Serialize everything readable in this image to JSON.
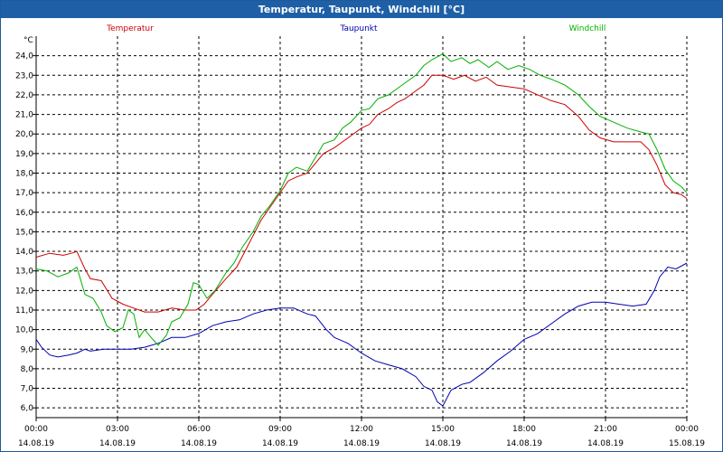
{
  "window": {
    "title": "Temperatur, Taupunkt, Windchill [°C]"
  },
  "colors": {
    "temperature": "#cc0000",
    "dewpoint": "#0000b0",
    "windchill": "#00b000",
    "grid": "#000000",
    "titlebar": "#1f5fa6"
  },
  "chart_data": {
    "type": "line",
    "title": "Temperatur, Taupunkt, Windchill [°C]",
    "yunit": "°C",
    "ylim": [
      5.5,
      25.0
    ],
    "yticks": [
      "6,0",
      "7,0",
      "8,0",
      "9,0",
      "10,0",
      "11,0",
      "12,0",
      "13,0",
      "14,0",
      "15,0",
      "16,0",
      "17,0",
      "18,0",
      "19,0",
      "20,0",
      "21,0",
      "22,0",
      "23,0",
      "24,0"
    ],
    "xlim": [
      0,
      24
    ],
    "x_ticks": [
      {
        "time": "00:00",
        "date": "14.08.19"
      },
      {
        "time": "03:00",
        "date": "14.08.19"
      },
      {
        "time": "06:00",
        "date": "14.08.19"
      },
      {
        "time": "09:00",
        "date": "14.08.19"
      },
      {
        "time": "12:00",
        "date": "14.08.19"
      },
      {
        "time": "15:00",
        "date": "14.08.19"
      },
      {
        "time": "18:00",
        "date": "14.08.19"
      },
      {
        "time": "21:00",
        "date": "14.08.19"
      },
      {
        "time": "00:00",
        "date": "15.08.19"
      }
    ],
    "grid": true,
    "legend_position": "top",
    "series": [
      {
        "name": "Temperatur",
        "color": "#cc0000",
        "points": [
          [
            0,
            13.7
          ],
          [
            0.5,
            13.9
          ],
          [
            1,
            13.8
          ],
          [
            1.3,
            13.9
          ],
          [
            1.5,
            14.0
          ],
          [
            1.8,
            13.1
          ],
          [
            2,
            12.6
          ],
          [
            2.4,
            12.5
          ],
          [
            2.8,
            11.6
          ],
          [
            3.2,
            11.3
          ],
          [
            3.6,
            11.1
          ],
          [
            4,
            10.9
          ],
          [
            4.5,
            10.9
          ],
          [
            5,
            11.1
          ],
          [
            5.5,
            11.0
          ],
          [
            5.9,
            11.0
          ],
          [
            6.2,
            11.3
          ],
          [
            6.5,
            11.8
          ],
          [
            7,
            12.6
          ],
          [
            7.4,
            13.2
          ],
          [
            7.7,
            14.0
          ],
          [
            8,
            14.8
          ],
          [
            8.3,
            15.6
          ],
          [
            8.6,
            16.2
          ],
          [
            9,
            17.0
          ],
          [
            9.3,
            17.6
          ],
          [
            9.6,
            17.8
          ],
          [
            10,
            18.0
          ],
          [
            10.3,
            18.5
          ],
          [
            10.6,
            19.0
          ],
          [
            11,
            19.3
          ],
          [
            11.3,
            19.6
          ],
          [
            11.6,
            19.9
          ],
          [
            12,
            20.3
          ],
          [
            12.3,
            20.5
          ],
          [
            12.6,
            21.0
          ],
          [
            13,
            21.3
          ],
          [
            13.3,
            21.6
          ],
          [
            13.6,
            21.8
          ],
          [
            14,
            22.2
          ],
          [
            14.3,
            22.5
          ],
          [
            14.6,
            23.0
          ],
          [
            15,
            23.0
          ],
          [
            15.4,
            22.8
          ],
          [
            15.8,
            23.0
          ],
          [
            16.2,
            22.7
          ],
          [
            16.6,
            22.9
          ],
          [
            17,
            22.5
          ],
          [
            17.5,
            22.4
          ],
          [
            18,
            22.3
          ],
          [
            18.5,
            22.0
          ],
          [
            19,
            21.7
          ],
          [
            19.5,
            21.5
          ],
          [
            20,
            20.9
          ],
          [
            20.4,
            20.2
          ],
          [
            20.8,
            19.8
          ],
          [
            21.3,
            19.6
          ],
          [
            21.8,
            19.6
          ],
          [
            22.3,
            19.6
          ],
          [
            22.6,
            19.2
          ],
          [
            22.9,
            18.4
          ],
          [
            23.2,
            17.4
          ],
          [
            23.5,
            17.0
          ],
          [
            23.8,
            16.9
          ],
          [
            24,
            16.7
          ]
        ]
      },
      {
        "name": "Taupunkt",
        "color": "#0000b0",
        "points": [
          [
            0,
            9.5
          ],
          [
            0.2,
            9.1
          ],
          [
            0.5,
            8.7
          ],
          [
            0.8,
            8.6
          ],
          [
            1.2,
            8.7
          ],
          [
            1.5,
            8.8
          ],
          [
            1.8,
            9.0
          ],
          [
            2,
            8.9
          ],
          [
            2.5,
            9.0
          ],
          [
            3,
            9.0
          ],
          [
            3.5,
            9.0
          ],
          [
            4,
            9.1
          ],
          [
            4.5,
            9.3
          ],
          [
            5,
            9.6
          ],
          [
            5.5,
            9.6
          ],
          [
            6,
            9.8
          ],
          [
            6.5,
            10.2
          ],
          [
            7,
            10.4
          ],
          [
            7.5,
            10.5
          ],
          [
            8,
            10.8
          ],
          [
            8.5,
            11.0
          ],
          [
            9,
            11.1
          ],
          [
            9.5,
            11.1
          ],
          [
            10,
            10.8
          ],
          [
            10.3,
            10.7
          ],
          [
            10.7,
            10.0
          ],
          [
            11,
            9.6
          ],
          [
            11.5,
            9.3
          ],
          [
            12,
            8.8
          ],
          [
            12.5,
            8.4
          ],
          [
            13,
            8.2
          ],
          [
            13.5,
            8.0
          ],
          [
            14,
            7.6
          ],
          [
            14.3,
            7.1
          ],
          [
            14.6,
            6.9
          ],
          [
            14.8,
            6.3
          ],
          [
            15,
            6.1
          ],
          [
            15.3,
            6.9
          ],
          [
            15.7,
            7.2
          ],
          [
            16,
            7.3
          ],
          [
            16.5,
            7.8
          ],
          [
            17,
            8.4
          ],
          [
            17.5,
            8.9
          ],
          [
            18,
            9.5
          ],
          [
            18.5,
            9.8
          ],
          [
            19,
            10.3
          ],
          [
            19.5,
            10.8
          ],
          [
            20,
            11.2
          ],
          [
            20.5,
            11.4
          ],
          [
            21,
            11.4
          ],
          [
            21.5,
            11.3
          ],
          [
            22,
            11.2
          ],
          [
            22.5,
            11.3
          ],
          [
            22.8,
            12.0
          ],
          [
            23,
            12.7
          ],
          [
            23.3,
            13.2
          ],
          [
            23.6,
            13.1
          ],
          [
            24,
            13.4
          ]
        ]
      },
      {
        "name": "Windchill",
        "color": "#00b000",
        "points": [
          [
            0,
            13.1
          ],
          [
            0.4,
            13.0
          ],
          [
            0.8,
            12.7
          ],
          [
            1.2,
            12.9
          ],
          [
            1.5,
            13.2
          ],
          [
            1.8,
            11.8
          ],
          [
            2.1,
            11.6
          ],
          [
            2.4,
            10.9
          ],
          [
            2.6,
            10.2
          ],
          [
            2.9,
            9.9
          ],
          [
            3.2,
            10.1
          ],
          [
            3.4,
            11.0
          ],
          [
            3.6,
            10.8
          ],
          [
            3.8,
            9.6
          ],
          [
            4,
            10.0
          ],
          [
            4.3,
            9.5
          ],
          [
            4.5,
            9.2
          ],
          [
            4.8,
            9.7
          ],
          [
            5,
            10.4
          ],
          [
            5.3,
            10.6
          ],
          [
            5.6,
            11.3
          ],
          [
            5.8,
            12.4
          ],
          [
            6,
            12.3
          ],
          [
            6.3,
            11.6
          ],
          [
            6.6,
            12.0
          ],
          [
            7,
            12.9
          ],
          [
            7.3,
            13.4
          ],
          [
            7.6,
            14.2
          ],
          [
            8,
            15.0
          ],
          [
            8.3,
            15.8
          ],
          [
            8.6,
            16.3
          ],
          [
            9,
            17.1
          ],
          [
            9.3,
            18.0
          ],
          [
            9.6,
            18.3
          ],
          [
            10,
            18.1
          ],
          [
            10.3,
            18.8
          ],
          [
            10.6,
            19.5
          ],
          [
            11,
            19.7
          ],
          [
            11.3,
            20.3
          ],
          [
            11.6,
            20.6
          ],
          [
            12,
            21.2
          ],
          [
            12.3,
            21.3
          ],
          [
            12.6,
            21.8
          ],
          [
            13,
            22.0
          ],
          [
            13.3,
            22.3
          ],
          [
            13.6,
            22.6
          ],
          [
            14,
            23.0
          ],
          [
            14.3,
            23.5
          ],
          [
            14.6,
            23.8
          ],
          [
            15,
            24.1
          ],
          [
            15.3,
            23.7
          ],
          [
            15.7,
            23.9
          ],
          [
            16,
            23.6
          ],
          [
            16.3,
            23.8
          ],
          [
            16.7,
            23.4
          ],
          [
            17,
            23.7
          ],
          [
            17.4,
            23.3
          ],
          [
            17.8,
            23.5
          ],
          [
            18.2,
            23.3
          ],
          [
            18.6,
            23.0
          ],
          [
            19,
            22.8
          ],
          [
            19.5,
            22.5
          ],
          [
            20,
            22.0
          ],
          [
            20.4,
            21.4
          ],
          [
            20.8,
            20.9
          ],
          [
            21.3,
            20.6
          ],
          [
            21.8,
            20.3
          ],
          [
            22.3,
            20.1
          ],
          [
            22.6,
            20.0
          ],
          [
            22.9,
            19.2
          ],
          [
            23.2,
            18.2
          ],
          [
            23.5,
            17.6
          ],
          [
            23.8,
            17.3
          ],
          [
            24,
            17.0
          ]
        ]
      }
    ]
  }
}
